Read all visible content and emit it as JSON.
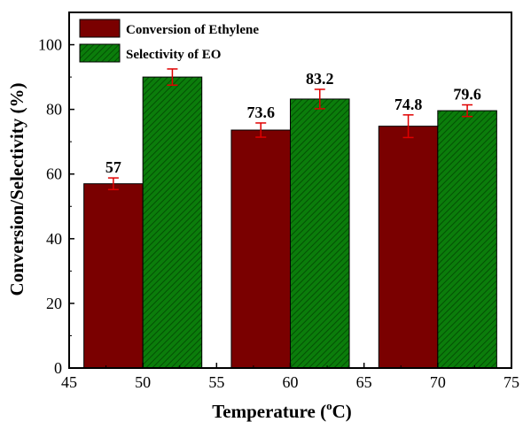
{
  "chart_data": {
    "type": "bar",
    "xlabel": "Temperature (",
    "xlabel_unit": "C)",
    "xlabel_degree": "o",
    "ylabel": "Conversion/Selectivity (%)",
    "xlim": [
      45,
      75
    ],
    "ylim": [
      0,
      110
    ],
    "xticks": [
      45,
      50,
      55,
      60,
      65,
      70,
      75
    ],
    "yticks": [
      0,
      20,
      40,
      60,
      80,
      100
    ],
    "grid": false,
    "legend_position": "top-left",
    "categories": [
      50,
      60,
      70
    ],
    "bar_width": 4,
    "series": [
      {
        "name": "Conversion of Ethylene",
        "color": "#7a0000",
        "pattern": "solid",
        "x": [
          48,
          58,
          68
        ],
        "values": [
          57,
          73.6,
          74.8
        ],
        "errors": [
          1.8,
          2.2,
          3.5
        ],
        "labels": [
          "57",
          "73.6",
          "74.8"
        ]
      },
      {
        "name": "Selectivity of EO",
        "color": "#0a7a0a",
        "pattern": "diagonal-hatch",
        "x": [
          52,
          62,
          72
        ],
        "values": [
          90,
          83.2,
          79.6
        ],
        "errors": [
          2.5,
          3.0,
          1.8
        ],
        "labels": [
          "",
          "83.2",
          "79.6"
        ]
      }
    ],
    "error_bar_color": "#e00000"
  }
}
